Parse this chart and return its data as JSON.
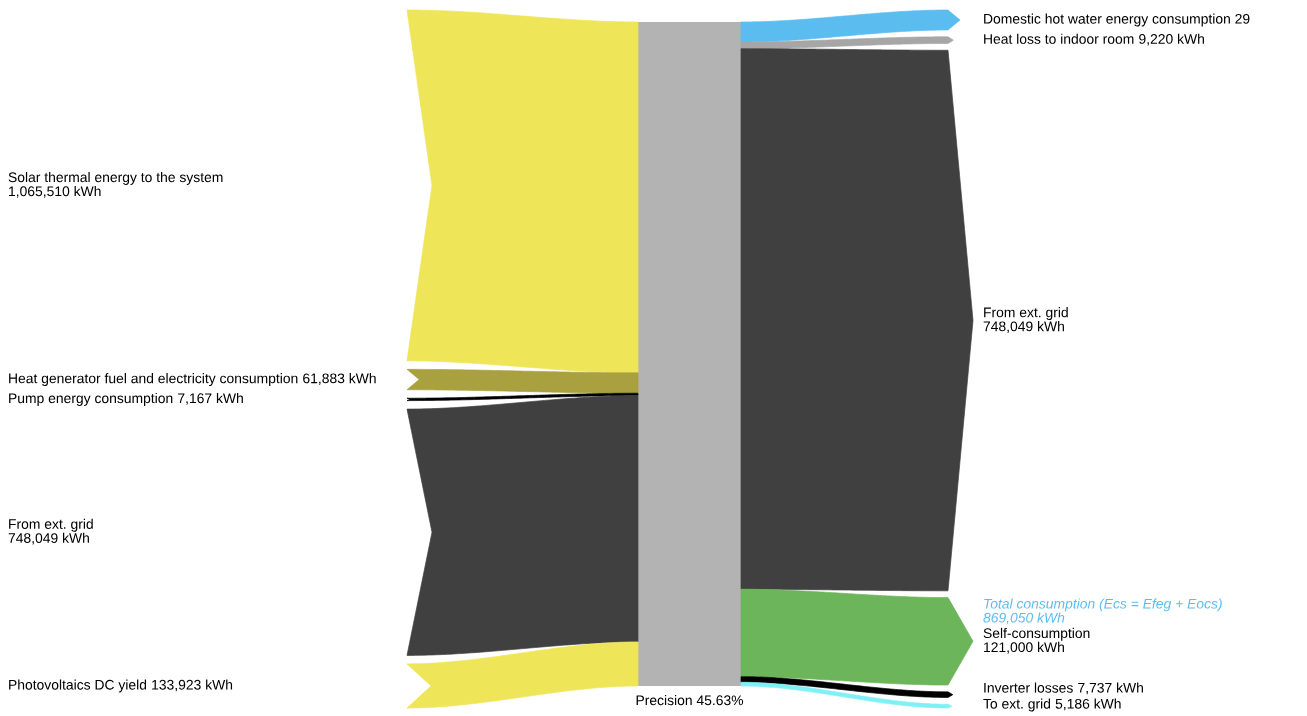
{
  "chart_data": {
    "type": "other",
    "color": "#b3b3b3",
    "categories": [
      "Solar thermal energy to the system",
      "Heat generator fuel and electricity consumption",
      "Pump energy consumption",
      "From ext. grid",
      "Photovoltaics DC yield",
      "Domestic hot water energy consumption 29",
      "Heat loss to indoor room",
      "From ext. grid",
      "Self-consumption",
      "Inverter losses",
      "To ext. grid"
    ],
    "series": [
      {
        "values": [
          1065510,
          61883,
          7167,
          748049,
          133923,
          null,
          null,
          null,
          null,
          null,
          null
        ],
        "colors": [
          "#efe558",
          "#a9a040",
          "#000000",
          "#404040",
          "#efe558",
          null,
          null,
          null,
          null,
          null,
          null
        ],
        "value_labels": [
          "1,065,510 kWh",
          "61,883 kWh",
          "7,167 kWh",
          "748,049 kWh",
          "133,923 kWh",
          null,
          null,
          null,
          null,
          null,
          null
        ]
      },
      {
        "values": [
          null,
          null,
          null,
          null,
          null,
          null,
          9220,
          748049,
          121000,
          7737,
          5186
        ],
        "colors": [
          null,
          null,
          null,
          null,
          null,
          "#5bbcef",
          "#a6a6a6",
          "#404040",
          "#6db55a",
          "#000000",
          "#7ff0f5"
        ],
        "value_labels": [
          null,
          null,
          null,
          null,
          null,
          null,
          "9,220 kWh",
          "748,049 kWh",
          "121,000 kWh",
          "7,737 kWh",
          "5,186 kWh"
        ]
      }
    ],
    "annotations": [
      "Precision 45.63%",
      "Total consumption (Ecs = Efeg + Eocs)",
      "869,050 kWh"
    ]
  }
}
